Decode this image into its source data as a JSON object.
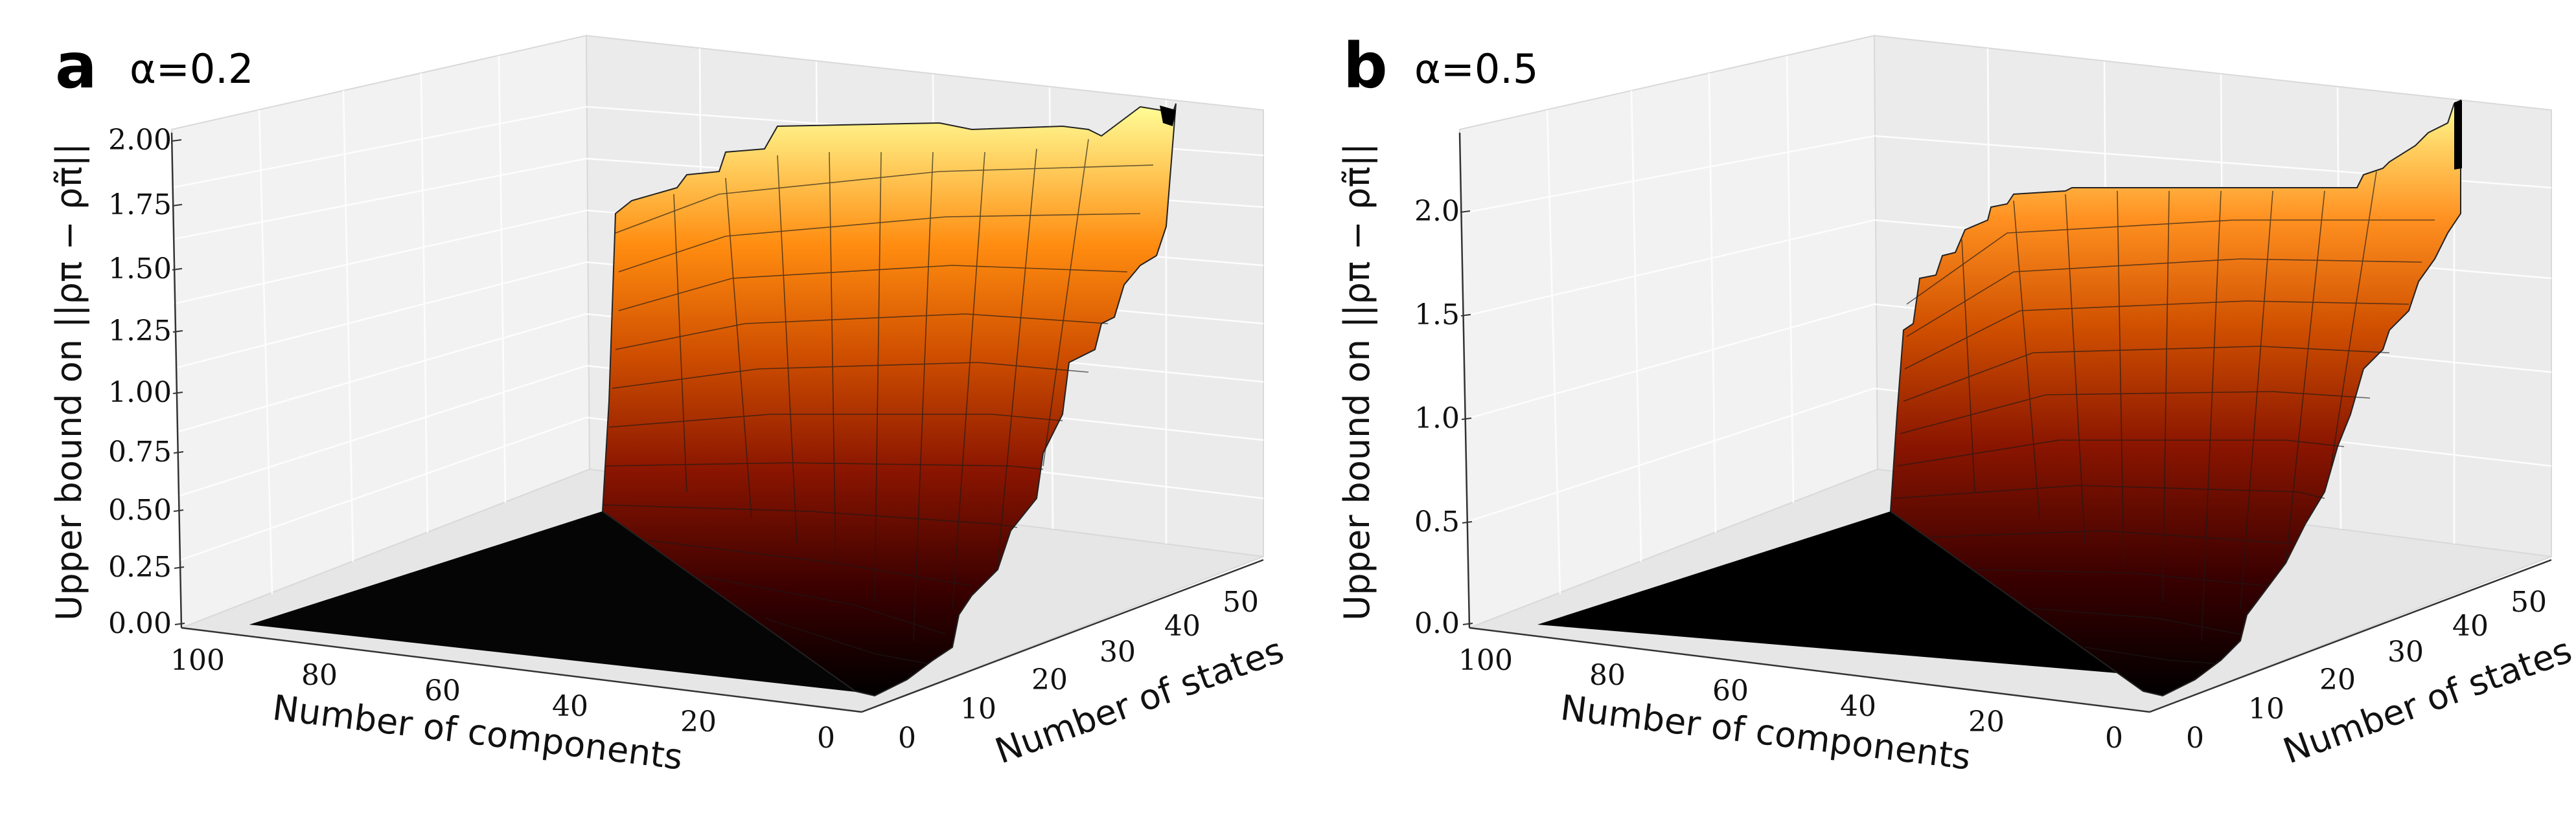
{
  "panels": [
    {
      "letter": "a",
      "alpha_label": "α=0.2",
      "zlabel": "Upper bound on ||ρπ − ρπ̃||",
      "zticks": [
        "0.00",
        "0.25",
        "0.50",
        "0.75",
        "1.00",
        "1.25",
        "1.50",
        "1.75",
        "2.00"
      ],
      "xlabel": "Number of components",
      "xticks": [
        "100",
        "80",
        "60",
        "40",
        "20",
        "0"
      ],
      "ylabel": "Number of states",
      "yticks": [
        "0",
        "10",
        "20",
        "30",
        "40",
        "50"
      ]
    },
    {
      "letter": "b",
      "alpha_label": "α=0.5",
      "zlabel": "Upper bound on ||ρπ − ρπ̃||",
      "zticks": [
        "0.0",
        "0.5",
        "1.0",
        "1.5",
        "2.0"
      ],
      "xlabel": "Number of components",
      "xticks": [
        "100",
        "80",
        "60",
        "40",
        "20",
        "0"
      ],
      "ylabel": "Number of states",
      "yticks": [
        "0",
        "10",
        "20",
        "30",
        "40",
        "50"
      ]
    }
  ],
  "chart_data": [
    {
      "type": "surface3d",
      "alpha": 0.2,
      "x_axis": "Number of components",
      "y_axis": "Number of states",
      "z_axis": "Upper bound on ||ρπ − ρπ̃||",
      "xlim": [
        0,
        100
      ],
      "ylim": [
        0,
        50
      ],
      "zlim": [
        0,
        2.0
      ],
      "colormap": "afmhot",
      "z_profile_vs_states": {
        "states": [
          0,
          5,
          10,
          15,
          20,
          25,
          30,
          35,
          40,
          45,
          50
        ],
        "z": [
          0.0,
          0.1,
          0.45,
          0.75,
          1.0,
          1.2,
          1.45,
          1.65,
          1.75,
          1.85,
          2.0
        ]
      }
    },
    {
      "type": "surface3d",
      "alpha": 0.5,
      "x_axis": "Number of components",
      "y_axis": "Number of states",
      "z_axis": "Upper bound on ||ρπ − ρπ̃||",
      "xlim": [
        0,
        100
      ],
      "ylim": [
        0,
        50
      ],
      "zlim": [
        0,
        2.3
      ],
      "colormap": "afmhot",
      "z_profile_vs_states": {
        "states": [
          0,
          5,
          10,
          15,
          20,
          25,
          30,
          35,
          40,
          45,
          50
        ],
        "z": [
          0.0,
          0.1,
          0.4,
          0.7,
          0.95,
          1.2,
          1.45,
          1.6,
          1.75,
          1.95,
          2.3
        ]
      }
    }
  ]
}
